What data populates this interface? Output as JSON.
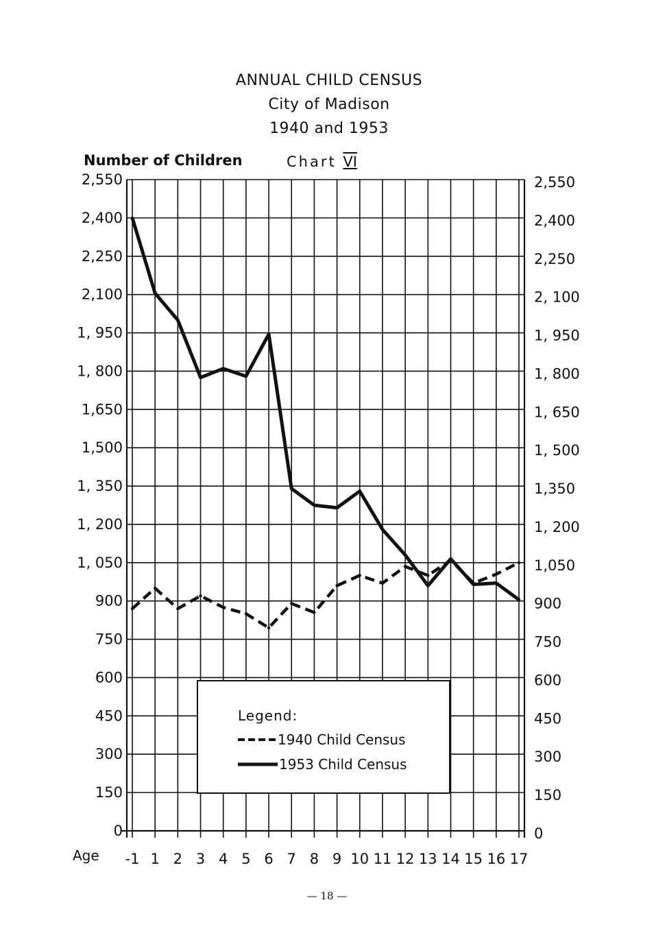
{
  "page": {
    "title_lines": [
      "ANNUAL CHILD CENSUS",
      "City of Madison",
      "1940 and 1953"
    ],
    "chart_number_label": "Chart",
    "chart_number_roman": "VI",
    "page_number": "— 18 —"
  },
  "chart_data": {
    "type": "line",
    "title": "ANNUAL CHILD CENSUS City of Madison 1940 and 1953",
    "ylabel": "Number of Children",
    "xlabel": "Age",
    "categories": [
      "-1",
      "1",
      "2",
      "3",
      "4",
      "5",
      "6",
      "7",
      "8",
      "9",
      "10",
      "11",
      "12",
      "13",
      "14",
      "15",
      "16",
      "17"
    ],
    "y_ticks_left": [
      "2,550",
      "2,400",
      "2,250",
      "2,100",
      "1, 950",
      "1, 800",
      "1,650",
      "1,500",
      "1, 350",
      "1, 200",
      "1, 050",
      "900",
      "750",
      "600",
      "450",
      "300",
      "150",
      "0"
    ],
    "y_ticks_right": [
      "2,550",
      "2,400",
      "2,250",
      "2, 100",
      "1, 950",
      "1, 800",
      "1, 650",
      "1, 500",
      "1,350",
      "1, 200",
      "1,050",
      "900",
      "750",
      "600",
      "450",
      "300",
      "150",
      "0"
    ],
    "ylim": [
      0,
      2550
    ],
    "grid": true,
    "legend_position": "bottom-center",
    "legend_title": "Legend:",
    "series": [
      {
        "name": "1940 Child Census",
        "style": "dashed",
        "color": "#111111",
        "values": [
          870,
          950,
          870,
          920,
          875,
          850,
          795,
          890,
          855,
          960,
          1000,
          970,
          1035,
          1000,
          1060,
          970,
          1005,
          1050
        ]
      },
      {
        "name": "1953 Child Census",
        "style": "solid",
        "color": "#111111",
        "values": [
          2400,
          2105,
          2000,
          1775,
          1810,
          1780,
          1945,
          1340,
          1275,
          1265,
          1330,
          1180,
          1080,
          960,
          1065,
          965,
          970,
          905
        ]
      }
    ]
  }
}
